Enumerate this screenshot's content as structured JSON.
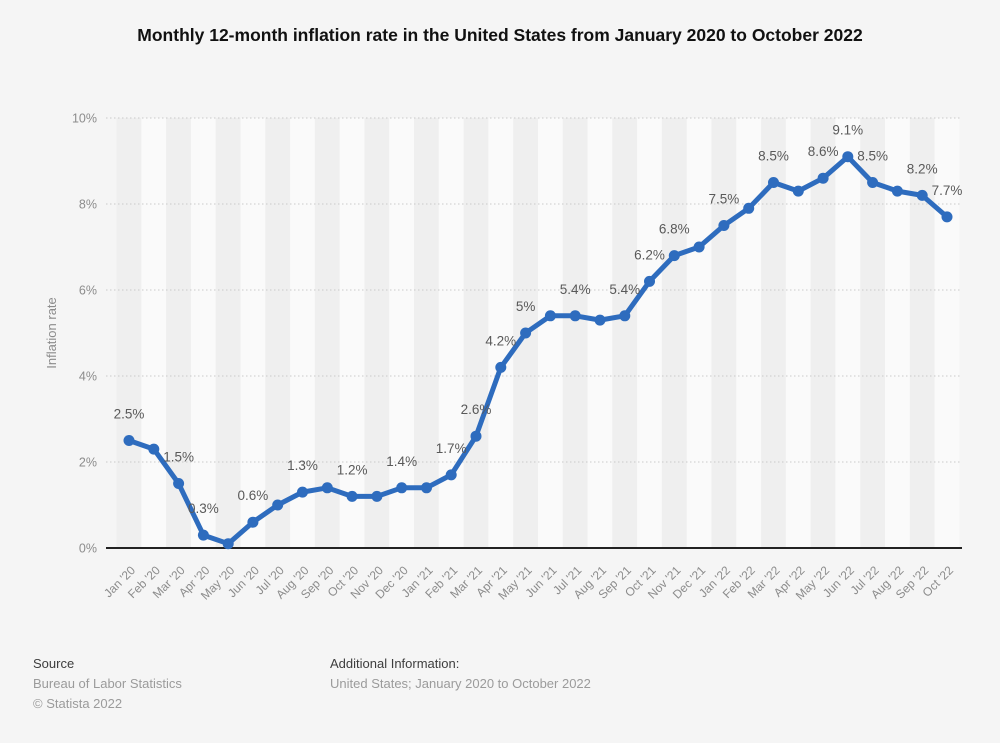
{
  "title": "Monthly 12-month inflation rate in the United States from January 2020 to October 2022",
  "colors": {
    "series_blue": "#2e6cbe",
    "background": "#f5f5f5",
    "band_dark": "#efefef",
    "band_light": "#fafafa",
    "gridline": "#c9c9c9",
    "axis_line": "#222222",
    "axis_text": "#8c8c8c",
    "data_label_text": "#595959"
  },
  "chart_data": {
    "type": "line",
    "title": "Monthly 12-month inflation rate in the United States from January 2020 to October 2022",
    "xlabel": "",
    "ylabel": "Inflation rate",
    "x": [
      "Jan '20",
      "Feb '20",
      "Mar '20",
      "Apr '20",
      "May '20",
      "Jun '20",
      "Jul '20",
      "Aug '20",
      "Sep '20",
      "Oct '20",
      "Nov '20",
      "Dec '20",
      "Jan '21",
      "Feb '21",
      "Mar '21",
      "Apr '21",
      "May '21",
      "Jun '21",
      "Jul '21",
      "Aug '21",
      "Sep '21",
      "Oct '21",
      "Nov '21",
      "Dec '21",
      "Jan '22",
      "Feb '22",
      "Mar '22",
      "Apr '22",
      "May '22",
      "Jun '22",
      "Jul '22",
      "Aug '22",
      "Sep '22",
      "Oct '22"
    ],
    "values": [
      2.5,
      2.3,
      1.5,
      0.3,
      0.1,
      0.6,
      1.0,
      1.3,
      1.4,
      1.2,
      1.2,
      1.4,
      1.4,
      1.7,
      2.6,
      4.2,
      5.0,
      5.4,
      5.4,
      5.3,
      5.4,
      6.2,
      6.8,
      7.0,
      7.5,
      7.9,
      8.5,
      8.3,
      8.6,
      9.1,
      8.5,
      8.3,
      8.2,
      7.7
    ],
    "point_labels": [
      "2.5%",
      "",
      "1.5%",
      "0.3%",
      "",
      "0.6%",
      "",
      "1.3%",
      "",
      "1.2%",
      "",
      "1.4%",
      "",
      "1.7%",
      "2.6%",
      "4.2%",
      "5%",
      "",
      "5.4%",
      "",
      "5.4%",
      "6.2%",
      "6.8%",
      "",
      "7.5%",
      "",
      "8.5%",
      "",
      "8.6%",
      "9.1%",
      "8.5%",
      "",
      "8.2%",
      "7.7%"
    ],
    "yticks": [
      "0%",
      "2%",
      "4%",
      "6%",
      "8%",
      "10%"
    ],
    "ylim": [
      0,
      10
    ],
    "grid": "horizontal-dotted",
    "legend": "none",
    "background_bands": "alternating vertical month columns"
  },
  "footer": {
    "source_label": "Source",
    "source_value": "Bureau of Labor Statistics",
    "copyright": "© Statista 2022",
    "additional_label": "Additional Information:",
    "additional_value": "United States; January 2020 to October 2022"
  }
}
